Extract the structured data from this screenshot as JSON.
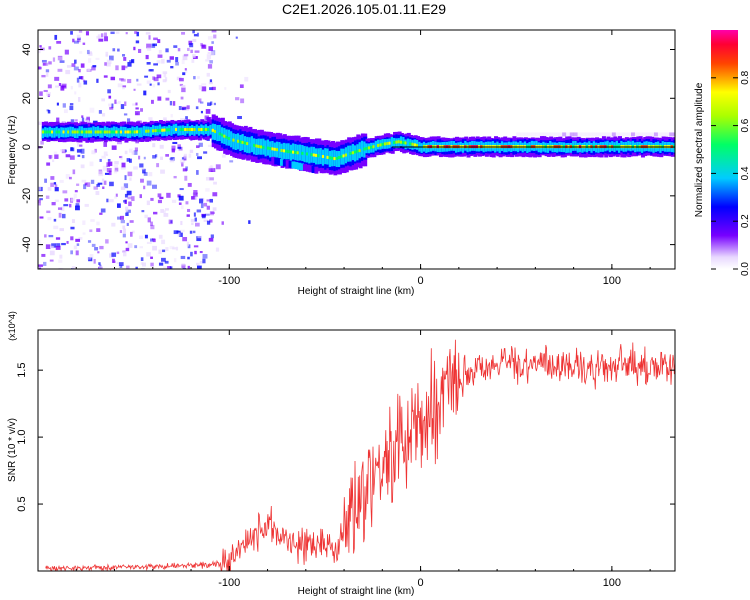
{
  "title": "C2E1.2026.105.01.11.E29",
  "chart_data": [
    {
      "type": "heatmap",
      "name": "spectrogram",
      "xlabel": "Height of straight line (km)",
      "ylabel": "Frequency (Hz)",
      "xlim": [
        -200,
        133
      ],
      "ylim": [
        -50,
        48
      ],
      "xticks": [
        -100,
        0,
        100
      ],
      "yticks": [
        -40,
        -20,
        0,
        20,
        40
      ],
      "ridge": {
        "x": [
          -196,
          -170,
          -150,
          -130,
          -110,
          -100,
          -85,
          -70,
          -60,
          -52,
          -45,
          -38,
          -30,
          -20,
          -12,
          -5,
          0,
          20,
          60,
          133
        ],
        "frequency": [
          6,
          6,
          6,
          7,
          7,
          3,
          0,
          -2,
          -3,
          -4,
          -5,
          -3,
          -1,
          1,
          2,
          1,
          0,
          0,
          0,
          0
        ]
      },
      "colorbar": {
        "label": "Normalized spectral amplitude",
        "range": [
          0.0,
          1.0
        ],
        "ticks": [
          0.0,
          0.2,
          0.4,
          0.6,
          0.8
        ]
      }
    },
    {
      "type": "line",
      "name": "snr",
      "xlabel": "Height of straight line (km)",
      "ylabel": "SNR (10 * v/v)",
      "scale_label": "(x10^4)",
      "xlim": [
        -200,
        133
      ],
      "ylim": [
        0,
        1.8
      ],
      "xticks": [
        -100,
        0,
        100
      ],
      "yticks": [
        0.5,
        1.0,
        1.5
      ],
      "color": "#ee3333",
      "series": {
        "x": [
          -196,
          -150,
          -120,
          -105,
          -100,
          -90,
          -85,
          -80,
          -75,
          -70,
          -60,
          -50,
          -45,
          -40,
          -35,
          -30,
          -25,
          -20,
          -15,
          -10,
          -5,
          0,
          10,
          20,
          30,
          40,
          50,
          60,
          70,
          80,
          90,
          100,
          110,
          120,
          133
        ],
        "values": [
          0.02,
          0.03,
          0.04,
          0.05,
          0.08,
          0.2,
          0.3,
          0.35,
          0.3,
          0.22,
          0.2,
          0.2,
          0.17,
          0.3,
          0.5,
          0.65,
          0.75,
          0.82,
          0.85,
          0.92,
          1.0,
          1.1,
          1.3,
          1.45,
          1.52,
          1.55,
          1.55,
          1.55,
          1.55,
          1.52,
          1.5,
          1.52,
          1.55,
          1.52,
          1.5
        ]
      }
    }
  ]
}
